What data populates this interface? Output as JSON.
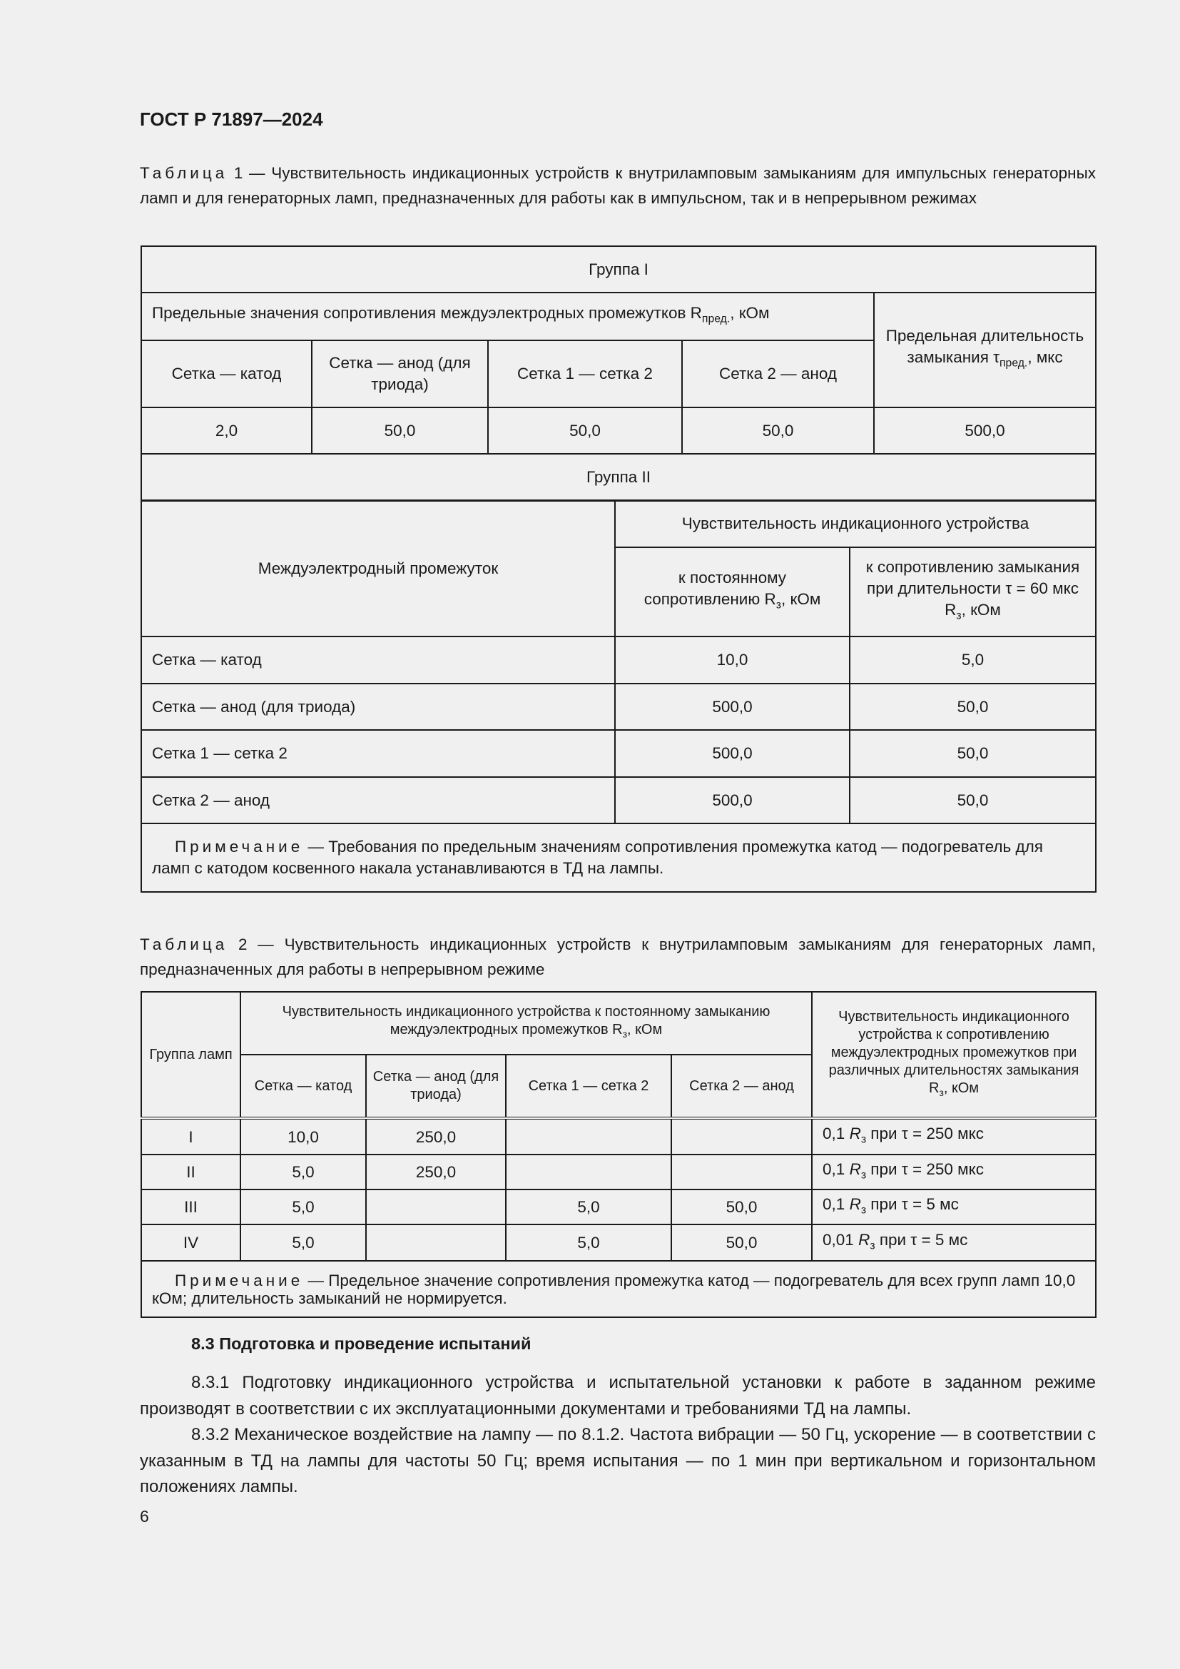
{
  "header": {
    "doc_id": "ГОСТ Р 71897—2024"
  },
  "table1": {
    "caption_label": "Таблица",
    "caption_text": " 1 — Чувствительность индикационных устройств к внутриламповым замыканиям для импульсных генераторных ламп и для генераторных ламп, предназначенных для работы как в импульсном, так и в непрерывном режимах",
    "group1_title": "Группа I",
    "limits_header": "Предельные значения сопротивления междуэлектродных промежутков R",
    "limits_sub": "пред.",
    "limits_unit": ", кОм",
    "duration_header": "Предельная длительность замыкания τ",
    "duration_sub": "пред.",
    "duration_unit": ", мкс",
    "columns": [
      "Сетка — катод",
      "Сетка — анод (для триода)",
      "Сетка 1 — сетка 2",
      "Сетка 2 — анод"
    ],
    "group1_values": [
      "2,0",
      "50,0",
      "50,0",
      "50,0",
      "500,0"
    ],
    "group2_title": "Группа II",
    "gap_header": "Междуэлектродный промежуток",
    "sensitivity_header": "Чувствительность индикационного устройства",
    "const_header": "к постоянному сопротивлению R",
    "const_sub": "з",
    "const_unit": ", кОм",
    "pulse_header": "к сопротивлению замыкания при длительности τ = 60 мкс R",
    "pulse_sub": "з",
    "pulse_unit": ", кОм",
    "rows": [
      {
        "gap": "Сетка — катод",
        "const": "10,0",
        "pulse": "5,0"
      },
      {
        "gap": "Сетка — анод (для триода)",
        "const": "500,0",
        "pulse": "50,0"
      },
      {
        "gap": "Сетка 1 — сетка 2",
        "const": "500,0",
        "pulse": "50,0"
      },
      {
        "gap": "Сетка 2 — анод",
        "const": "500,0",
        "pulse": "50,0"
      }
    ],
    "note_label": "Примечание",
    "note_text": " — Требования по предельным значениям сопротивления промежутка катод — подогреватель для ламп с катодом косвенного накала устанавливаются в ТД на лампы."
  },
  "table2": {
    "caption_label": "Таблица",
    "caption_text": " 2 — Чувствительность индикационных устройств к внутриламповым замыканиям для генераторных ламп, предназначенных для работы в непрерывном режиме",
    "group_header": "Группа ламп",
    "const_header": "Чувствительность индикационного устройства к постоянному замыканию междуэлектродных промежутков R",
    "const_sub": "з",
    "const_unit": ", кОм",
    "columns": [
      "Сетка — катод",
      "Сетка — анод (для триода)",
      "Сетка 1 — сетка 2",
      "Сетка 2 — анод"
    ],
    "pulse_header": "Чувствительность индикационного устройства к сопротивлению междуэлектродных промежутков при различных длительностях замыкания R",
    "pulse_sub": "з",
    "pulse_unit": ", кОм",
    "rows": [
      {
        "group": "I",
        "v": [
          "10,0",
          "250,0",
          "",
          ""
        ],
        "coef": "0,1",
        "cond": " при τ = 250 мкс"
      },
      {
        "group": "II",
        "v": [
          "5,0",
          "250,0",
          "",
          ""
        ],
        "coef": "0,1",
        "cond": " при τ = 250 мкс"
      },
      {
        "group": "III",
        "v": [
          "5,0",
          "",
          "5,0",
          "50,0"
        ],
        "coef": "0,1",
        "cond": " при τ = 5 мс"
      },
      {
        "group": "IV",
        "v": [
          "5,0",
          "",
          "5,0",
          "50,0"
        ],
        "coef": "0,01",
        "cond": " при τ = 5 мс"
      }
    ],
    "r_symbol": "R",
    "r_sub": "з",
    "note_label": "Примечание",
    "note_text": " — Предельное значение сопротивления промежутка катод — подогреватель для всех групп ламп 10,0 кОм; длительность замыканий не нормируется."
  },
  "section": {
    "title": "8.3  Подготовка и проведение испытаний",
    "paragraphs": [
      "8.3.1  Подготовку индикационного устройства и испытательной установки к работе в заданном режиме производят в соответствии с их эксплуатационными документами и требованиями ТД на лампы.",
      "8.3.2  Механическое воздействие на лампу — по 8.1.2. Частота вибрации — 50 Гц, ускорение — в соответствии с указанным в ТД на лампы для частоты 50 Гц; время испытания — по 1 мин при вертикальном и горизонтальном положениях лампы."
    ]
  },
  "footer": {
    "page_number": "6"
  }
}
